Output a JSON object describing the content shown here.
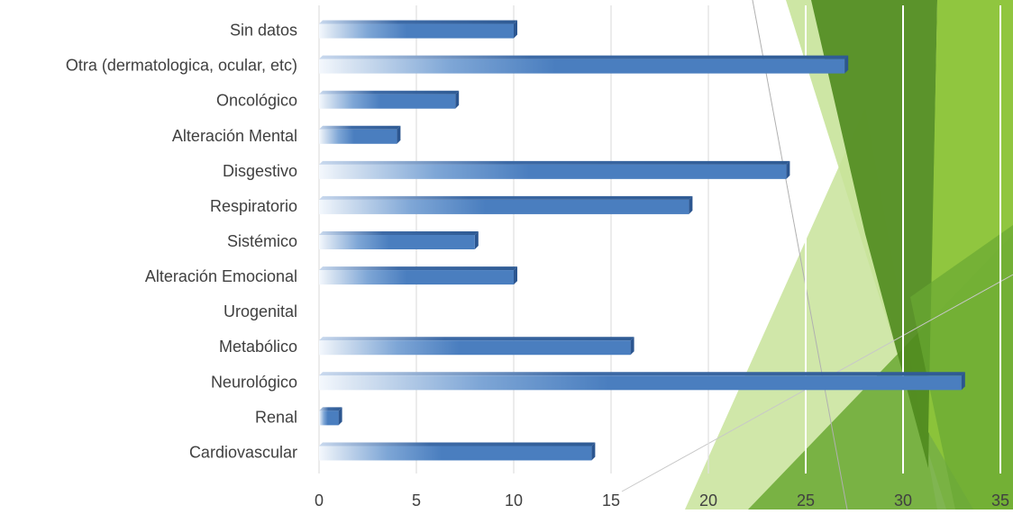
{
  "chart_data": {
    "type": "bar",
    "orientation": "horizontal",
    "categories": [
      "Sin datos",
      "Otra (dermatologica, ocular, etc)",
      "Oncológico",
      "Alteración Mental",
      "Disgestivo",
      "Respiratorio",
      "Sistémico",
      "Alteración Emocional",
      "Urogenital",
      "Metabólico",
      "Neurológico",
      "Renal",
      "Cardiovascular"
    ],
    "values": [
      10,
      27,
      7,
      4,
      24,
      19,
      8,
      10,
      0,
      16,
      33,
      1,
      14
    ],
    "xlim": [
      0,
      35
    ],
    "xticks": [
      "0",
      "5",
      "10",
      "15",
      "20",
      "25",
      "30",
      "35"
    ],
    "grid": true,
    "legend": "none",
    "colors": {
      "bar_main": "#4a7ebf",
      "bar_light": "#eef3fa",
      "bar_top": "#2f5b94",
      "grid": "#e0e0e0",
      "label": "#404040",
      "tick": "#404040",
      "deco_green_dark": "#4f8a1e",
      "deco_green_mid": "#6aa833",
      "deco_green_bright": "#8cc43a",
      "deco_green_pale": "#c8e39a"
    }
  }
}
